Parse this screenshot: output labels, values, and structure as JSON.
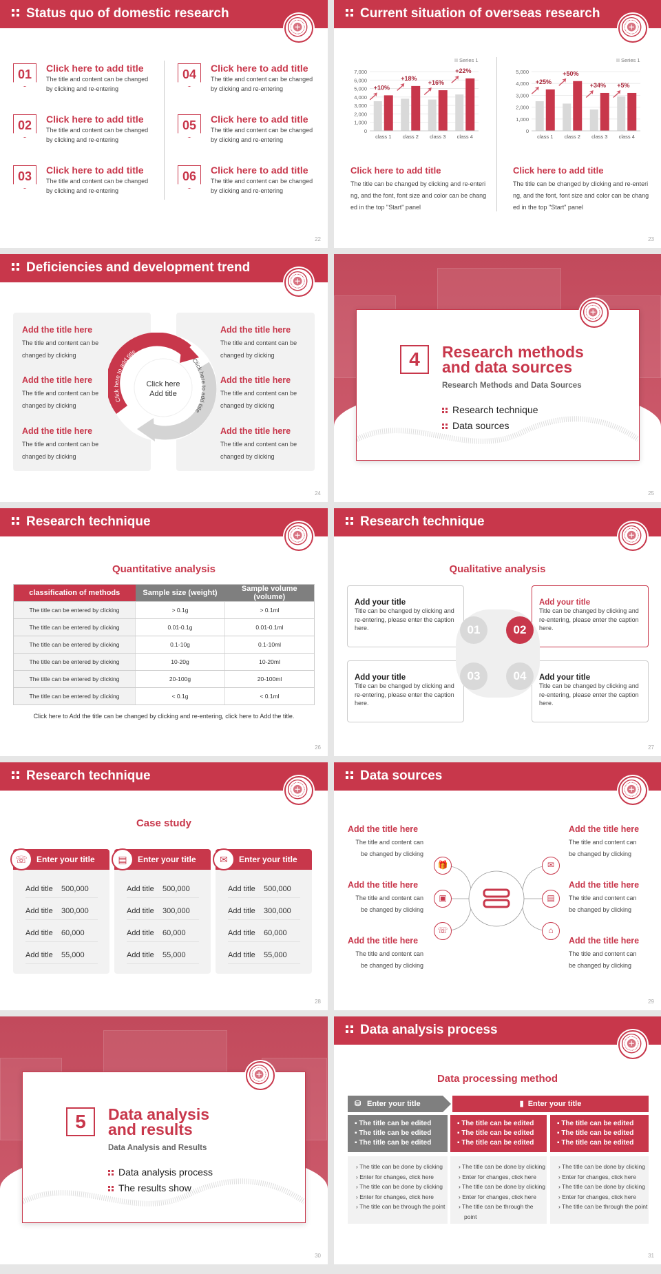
{
  "colors": {
    "primary": "#c8374b",
    "grey": "#7f7f7f",
    "light": "#f2f2f2",
    "bar_grey": "#d9d9d9"
  },
  "slides": {
    "s22": {
      "title": "Status quo of domestic research",
      "page": "22",
      "items": [
        {
          "num": "01",
          "title": "Click here to add title",
          "desc": "The title and content can be changed by clicking and re-entering"
        },
        {
          "num": "02",
          "title": "Click here to add title",
          "desc": "The title and content can be changed by clicking and re-entering"
        },
        {
          "num": "03",
          "title": "Click here to add title",
          "desc": "The title and content can be changed by clicking and re-entering"
        },
        {
          "num": "04",
          "title": "Click here to add title",
          "desc": "The title and content can be changed by clicking and re-entering"
        },
        {
          "num": "05",
          "title": "Click here to add title",
          "desc": "The title and content can be changed by clicking and re-entering"
        },
        {
          "num": "06",
          "title": "Click here to add title",
          "desc": "The title and content can be changed by clicking and re-entering"
        }
      ]
    },
    "s23": {
      "title": "Current situation of overseas research",
      "page": "23",
      "blocks": [
        {
          "title": "Click here to add title",
          "desc": "The title can be changed by clicking and re-entering, and the font, font size and color can be changed in the top \"Start\" panel"
        },
        {
          "title": "Click here to add title",
          "desc": "The title can be changed by clicking and re-entering, and the font, font size and color can be changed in the top \"Start\" panel"
        }
      ]
    },
    "s24": {
      "title": "Deficiencies and development trend",
      "page": "24",
      "center": [
        "Click here",
        "Add title"
      ],
      "arc_text": [
        "Click here to add title",
        "Click here to add title"
      ],
      "items": [
        {
          "title": "Add the title here",
          "desc": "The title and content can be changed by clicking"
        },
        {
          "title": "Add the title here",
          "desc": "The title and content can be changed by clicking"
        },
        {
          "title": "Add the title here",
          "desc": "The title and content can be changed by clicking"
        },
        {
          "title": "Add the title here",
          "desc": "The title and content can be changed by clicking"
        },
        {
          "title": "Add the title here",
          "desc": "The title and content can be changed by clicking"
        },
        {
          "title": "Add the title here",
          "desc": "The title and content can be changed by clicking"
        }
      ]
    },
    "s25": {
      "num": "4",
      "title_lines": [
        "Research methods",
        "and data sources"
      ],
      "subtitle": "Research Methods and Data Sources",
      "bullets": [
        "Research technique",
        "Data sources"
      ],
      "page": "25"
    },
    "s26": {
      "title": "Research technique",
      "page": "26",
      "subtitle": "Quantitative analysis",
      "headers": [
        "classification of methods",
        "Sample size (weight)",
        "Sample volume (volume)"
      ],
      "rows": [
        [
          "The title can be entered by clicking",
          "> 0.1g",
          "> 0.1ml"
        ],
        [
          "The title can be entered by clicking",
          "0.01-0.1g",
          "0.01-0.1ml"
        ],
        [
          "The title can be entered by clicking",
          "0.1-10g",
          "0.1-10ml"
        ],
        [
          "The title can be entered by clicking",
          "10-20g",
          "10-20ml"
        ],
        [
          "The title can be entered by clicking",
          "20-100g",
          "20-100ml"
        ],
        [
          "The title can be entered by clicking",
          "< 0.1g",
          "< 0.1ml"
        ]
      ],
      "footnote": "Click here to Add the title can be changed by clicking and re-entering, click here to Add the title."
    },
    "s27": {
      "title": "Research technique",
      "page": "27",
      "subtitle": "Qualitative analysis",
      "nums": [
        "01",
        "02",
        "03",
        "04"
      ],
      "boxes": [
        {
          "title": "Add your title",
          "desc": "Title can be changed by clicking and re-entering, please enter the caption here."
        },
        {
          "title": "Add your title",
          "desc": "Title can be changed by clicking and re-entering, please enter the caption here."
        },
        {
          "title": "Add your title",
          "desc": "Title can be changed by clicking and re-entering, please enter the caption here."
        },
        {
          "title": "Add your title",
          "desc": "Title can be changed by clicking and re-entering, please enter the caption here."
        }
      ]
    },
    "s28": {
      "title": "Research technique",
      "page": "28",
      "subtitle": "Case study",
      "cards": [
        {
          "icon": "phone-icon",
          "title": "Enter your title",
          "rows": [
            [
              "Add title",
              "500,000"
            ],
            [
              "Add title",
              "300,000"
            ],
            [
              "Add title",
              "60,000"
            ],
            [
              "Add title",
              "55,000"
            ]
          ]
        },
        {
          "icon": "chart-icon",
          "title": "Enter your title",
          "rows": [
            [
              "Add title",
              "500,000"
            ],
            [
              "Add title",
              "300,000"
            ],
            [
              "Add title",
              "60,000"
            ],
            [
              "Add title",
              "55,000"
            ]
          ]
        },
        {
          "icon": "chat-icon",
          "title": "Enter your title",
          "rows": [
            [
              "Add title",
              "500,000"
            ],
            [
              "Add title",
              "300,000"
            ],
            [
              "Add title",
              "60,000"
            ],
            [
              "Add title",
              "55,000"
            ]
          ]
        }
      ]
    },
    "s29": {
      "title": "Data sources",
      "page": "29",
      "items": [
        {
          "title": "Add the title here",
          "desc": "The title and content can be changed by clicking"
        },
        {
          "title": "Add the title here",
          "desc": "The title and content can be changed by clicking"
        },
        {
          "title": "Add the title here",
          "desc": "The title and content can be changed by clicking"
        },
        {
          "title": "Add the title here",
          "desc": "The title and content can be changed by clicking"
        },
        {
          "title": "Add the title here",
          "desc": "The title and content can be changed by clicking"
        },
        {
          "title": "Add the title here",
          "desc": "The title and content can be changed by clicking"
        }
      ],
      "icons": [
        "gift-icon",
        "box-icon",
        "phone-icon",
        "chat-icon",
        "chart-icon",
        "building-icon"
      ],
      "center_icon": "server-icon"
    },
    "s30": {
      "num": "5",
      "title_lines": [
        "Data analysis",
        "and results"
      ],
      "subtitle": "Data Analysis and Results",
      "bullets": [
        "Data analysis process",
        "The results show"
      ],
      "page": "30"
    },
    "s31": {
      "title": "Data analysis process",
      "page": "31",
      "subtitle": "Data processing method",
      "head_left": "Enter your title",
      "head_right": "Enter your title",
      "cols": [
        {
          "edited": [
            "The title can be edited",
            "The title can be edited",
            "The title can be edited"
          ],
          "points": [
            "The title can be done by clicking",
            "Enter for changes, click here",
            "The title can be done by clicking",
            "Enter for changes, click here",
            "The title can be through the point"
          ]
        },
        {
          "edited": [
            "The title can be edited",
            "The title can be edited",
            "The title can be edited"
          ],
          "points": [
            "The title can be done by clicking",
            "Enter for changes, click here",
            "The title can be done by clicking",
            "Enter for changes, click here",
            "The title can be through the point"
          ]
        },
        {
          "edited": [
            "The title can be edited",
            "The title can be edited",
            "The title can be edited"
          ],
          "points": [
            "The title can be done by clicking",
            "Enter for changes, click here",
            "The title can be done by clicking",
            "Enter for changes, click here",
            "The title can be through the point"
          ]
        }
      ]
    }
  },
  "chart_data": [
    {
      "type": "bar",
      "categories": [
        "class 1",
        "class 2",
        "class 3",
        "class 4"
      ],
      "series": [
        {
          "name": "Series 1",
          "values": [
            3500,
            3800,
            3700,
            4300
          ]
        },
        {
          "values": [
            4200,
            5300,
            4800,
            6200
          ]
        }
      ],
      "annotations": [
        "+10%",
        "+18%",
        "+16%",
        "+22%"
      ],
      "ylim": [
        0,
        7000
      ],
      "yticks": [
        "0",
        "1,000",
        "2,000",
        "3,000",
        "4,000",
        "5,000",
        "6,000",
        "7,000"
      ],
      "grid": true,
      "legend": "top-right"
    },
    {
      "type": "bar",
      "categories": [
        "class 1",
        "class 2",
        "class 3",
        "class 4"
      ],
      "series": [
        {
          "name": "Series 1",
          "values": [
            2500,
            2300,
            1800,
            2900
          ]
        },
        {
          "values": [
            3500,
            4200,
            3200,
            3200
          ]
        }
      ],
      "annotations": [
        "+25%",
        "+50%",
        "+34%",
        "+5%"
      ],
      "ylim": [
        0,
        5000
      ],
      "yticks": [
        "0",
        "1,000",
        "2,000",
        "3,000",
        "4,000",
        "5,000"
      ],
      "grid": true,
      "legend": "top-right"
    }
  ]
}
